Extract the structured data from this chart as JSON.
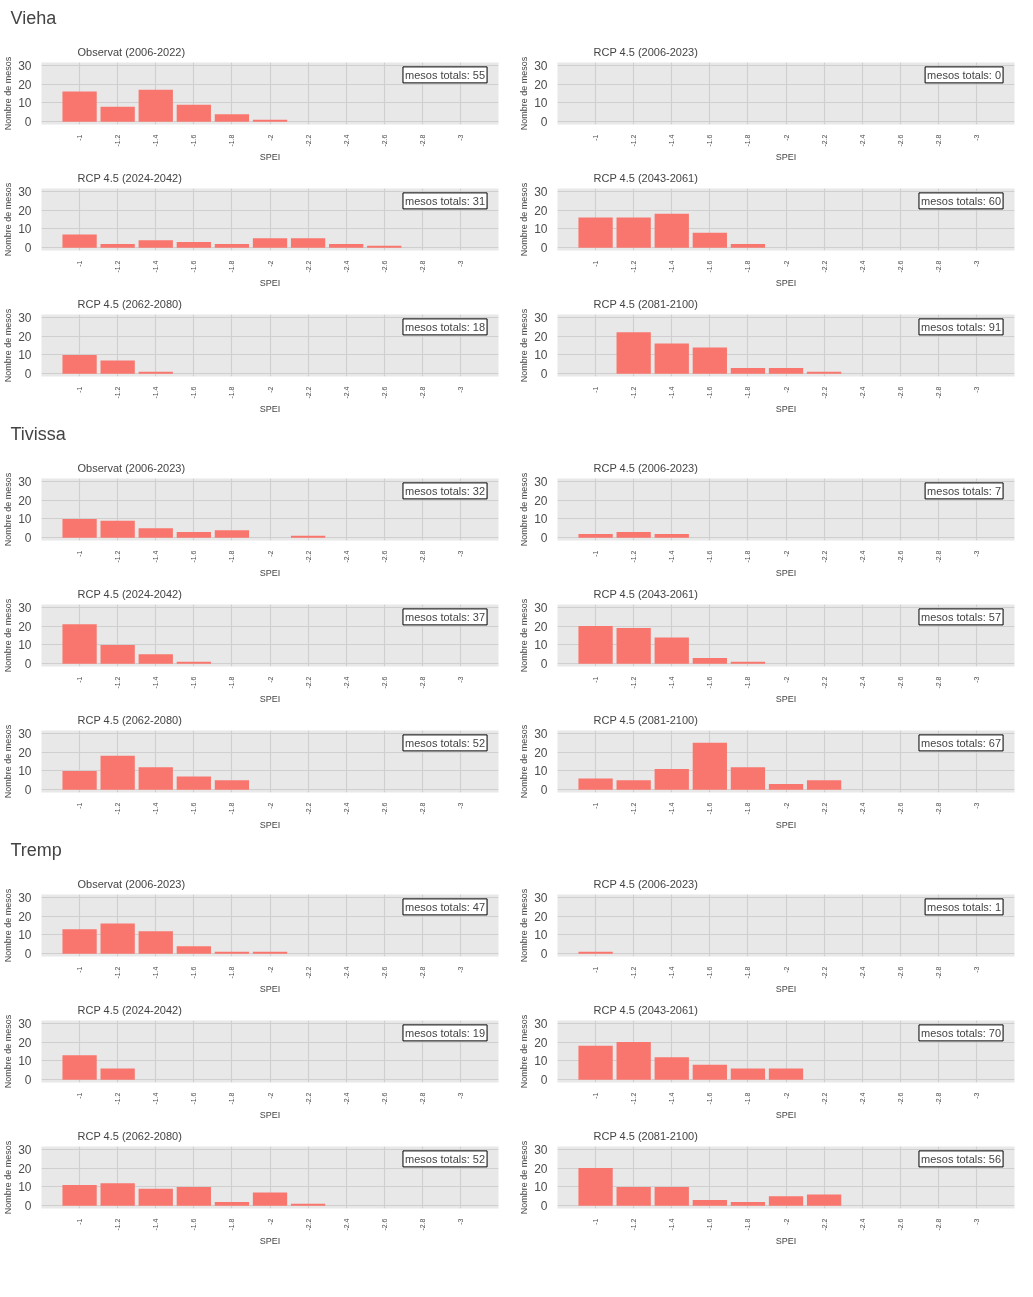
{
  "chart_data": [
    {
      "type": "other",
      "title": "Vieha"
    },
    {
      "type": "bar",
      "title": "Observat (2006-2022)",
      "xlabel": "SPEI",
      "ylabel": "Nombre de mesos",
      "x": [
        -1,
        -1.2,
        -1.4,
        -1.6,
        -1.8,
        -2,
        -2.2,
        -2.4,
        -2.6,
        -2.8,
        -3
      ],
      "values": [
        16,
        8,
        17,
        9,
        4,
        1,
        0,
        0,
        0,
        0,
        0
      ],
      "color": "#f8766d",
      "xlim": [
        -0.8,
        -3.2
      ],
      "xticks": [
        -1,
        -1.2,
        -1.4,
        -1.6,
        -1.8,
        -2,
        -2.2,
        -2.4,
        -2.6,
        -2.8,
        -3
      ],
      "ylim": [
        -1.5,
        31.5
      ],
      "yticks": [
        0,
        10,
        20,
        30
      ],
      "grid": true,
      "annotations": [
        "mesos totals: 55"
      ]
    },
    {
      "type": "bar",
      "title": "RCP 4.5 (2006-2023)",
      "xlabel": "SPEI",
      "ylabel": "Nombre de mesos",
      "x": [
        -1,
        -1.2,
        -1.4,
        -1.6,
        -1.8,
        -2,
        -2.2,
        -2.4,
        -2.6,
        -2.8,
        -3
      ],
      "values": [
        0,
        0,
        0,
        0,
        0,
        0,
        0,
        0,
        0,
        0,
        0
      ],
      "color": "#f8766d",
      "xlim": [
        -0.8,
        -3.2
      ],
      "xticks": [
        -1,
        -1.2,
        -1.4,
        -1.6,
        -1.8,
        -2,
        -2.2,
        -2.4,
        -2.6,
        -2.8,
        -3
      ],
      "ylim": [
        -1.5,
        31.5
      ],
      "yticks": [
        0,
        10,
        20,
        30
      ],
      "grid": true,
      "annotations": [
        "mesos totals: 0"
      ]
    },
    {
      "type": "bar",
      "title": "RCP 4.5 (2024-2042)",
      "xlabel": "SPEI",
      "ylabel": "Nombre de mesos",
      "x": [
        -1,
        -1.2,
        -1.4,
        -1.6,
        -1.8,
        -2,
        -2.2,
        -2.4,
        -2.6,
        -2.8,
        -3
      ],
      "values": [
        7,
        2,
        4,
        3,
        2,
        5,
        5,
        2,
        1,
        0,
        0
      ],
      "color": "#f8766d",
      "xlim": [
        -0.8,
        -3.2
      ],
      "xticks": [
        -1,
        -1.2,
        -1.4,
        -1.6,
        -1.8,
        -2,
        -2.2,
        -2.4,
        -2.6,
        -2.8,
        -3
      ],
      "ylim": [
        -1.5,
        31.5
      ],
      "yticks": [
        0,
        10,
        20,
        30
      ],
      "grid": true,
      "annotations": [
        "mesos totals: 31"
      ]
    },
    {
      "type": "bar",
      "title": "RCP 4.5 (2043-2061)",
      "xlabel": "SPEI",
      "ylabel": "Nombre de mesos",
      "x": [
        -1,
        -1.2,
        -1.4,
        -1.6,
        -1.8,
        -2,
        -2.2,
        -2.4,
        -2.6,
        -2.8,
        -3
      ],
      "values": [
        16,
        16,
        18,
        8,
        2,
        0,
        0,
        0,
        0,
        0,
        0
      ],
      "color": "#f8766d",
      "xlim": [
        -0.8,
        -3.2
      ],
      "xticks": [
        -1,
        -1.2,
        -1.4,
        -1.6,
        -1.8,
        -2,
        -2.2,
        -2.4,
        -2.6,
        -2.8,
        -3
      ],
      "ylim": [
        -1.5,
        31.5
      ],
      "yticks": [
        0,
        10,
        20,
        30
      ],
      "grid": true,
      "annotations": [
        "mesos totals: 60"
      ]
    },
    {
      "type": "bar",
      "title": "RCP 4.5 (2062-2080)",
      "xlabel": "SPEI",
      "ylabel": "Nombre de mesos",
      "x": [
        -1,
        -1.2,
        -1.4,
        -1.6,
        -1.8,
        -2,
        -2.2,
        -2.4,
        -2.6,
        -2.8,
        -3
      ],
      "values": [
        10,
        7,
        1,
        0,
        0,
        0,
        0,
        0,
        0,
        0,
        0
      ],
      "color": "#f8766d",
      "xlim": [
        -0.8,
        -3.2
      ],
      "xticks": [
        -1,
        -1.2,
        -1.4,
        -1.6,
        -1.8,
        -2,
        -2.2,
        -2.4,
        -2.6,
        -2.8,
        -3
      ],
      "ylim": [
        -1.5,
        31.5
      ],
      "yticks": [
        0,
        10,
        20,
        30
      ],
      "grid": true,
      "annotations": [
        "mesos totals: 18"
      ]
    },
    {
      "type": "bar",
      "title": "RCP 4.5 (2081-2100)",
      "xlabel": "SPEI",
      "ylabel": "Nombre de mesos",
      "x": [
        -1,
        -1.2,
        -1.4,
        -1.6,
        -1.8,
        -2,
        -2.2,
        -2.4,
        -2.6,
        -2.8,
        -3
      ],
      "values": [
        0,
        22,
        16,
        14,
        3,
        3,
        1,
        0,
        0,
        0,
        0
      ],
      "color": "#f8766d",
      "xlim": [
        -0.8,
        -3.2
      ],
      "xticks": [
        -1,
        -1.2,
        -1.4,
        -1.6,
        -1.8,
        -2,
        -2.2,
        -2.4,
        -2.6,
        -2.8,
        -3
      ],
      "ylim": [
        -1.5,
        31.5
      ],
      "yticks": [
        0,
        10,
        20,
        30
      ],
      "grid": true,
      "annotations": [
        "mesos totals: 91"
      ]
    },
    {
      "type": "other",
      "title": "Tivissa"
    },
    {
      "type": "bar",
      "title": "Observat (2006-2023)",
      "xlabel": "SPEI",
      "ylabel": "Nombre de mesos",
      "x": [
        -1,
        -1.2,
        -1.4,
        -1.6,
        -1.8,
        -2,
        -2.2,
        -2.4,
        -2.6,
        -2.8,
        -3
      ],
      "values": [
        10,
        9,
        5,
        3,
        4,
        0,
        1,
        0,
        0,
        0,
        0
      ],
      "color": "#f8766d",
      "xlim": [
        -0.8,
        -3.2
      ],
      "xticks": [
        -1,
        -1.2,
        -1.4,
        -1.6,
        -1.8,
        -2,
        -2.2,
        -2.4,
        -2.6,
        -2.8,
        -3
      ],
      "ylim": [
        -1.5,
        31.5
      ],
      "yticks": [
        0,
        10,
        20,
        30
      ],
      "grid": true,
      "annotations": [
        "mesos totals: 32"
      ]
    },
    {
      "type": "bar",
      "title": "RCP 4.5 (2006-2023)",
      "xlabel": "SPEI",
      "ylabel": "Nombre de mesos",
      "x": [
        -1,
        -1.2,
        -1.4,
        -1.6,
        -1.8,
        -2,
        -2.2,
        -2.4,
        -2.6,
        -2.8,
        -3
      ],
      "values": [
        2,
        3,
        2,
        0,
        0,
        0,
        0,
        0,
        0,
        0,
        0
      ],
      "color": "#f8766d",
      "xlim": [
        -0.8,
        -3.2
      ],
      "xticks": [
        -1,
        -1.2,
        -1.4,
        -1.6,
        -1.8,
        -2,
        -2.2,
        -2.4,
        -2.6,
        -2.8,
        -3
      ],
      "ylim": [
        -1.5,
        31.5
      ],
      "yticks": [
        0,
        10,
        20,
        30
      ],
      "grid": true,
      "annotations": [
        "mesos totals: 7"
      ]
    },
    {
      "type": "bar",
      "title": "RCP 4.5 (2024-2042)",
      "xlabel": "SPEI",
      "ylabel": "Nombre de mesos",
      "x": [
        -1,
        -1.2,
        -1.4,
        -1.6,
        -1.8,
        -2,
        -2.2,
        -2.4,
        -2.6,
        -2.8,
        -3
      ],
      "values": [
        21,
        10,
        5,
        1,
        0,
        0,
        0,
        0,
        0,
        0,
        0
      ],
      "color": "#f8766d",
      "xlim": [
        -0.8,
        -3.2
      ],
      "xticks": [
        -1,
        -1.2,
        -1.4,
        -1.6,
        -1.8,
        -2,
        -2.2,
        -2.4,
        -2.6,
        -2.8,
        -3
      ],
      "ylim": [
        -1.5,
        31.5
      ],
      "yticks": [
        0,
        10,
        20,
        30
      ],
      "grid": true,
      "annotations": [
        "mesos totals: 37"
      ]
    },
    {
      "type": "bar",
      "title": "RCP 4.5 (2043-2061)",
      "xlabel": "SPEI",
      "ylabel": "Nombre de mesos",
      "x": [
        -1,
        -1.2,
        -1.4,
        -1.6,
        -1.8,
        -2,
        -2.2,
        -2.4,
        -2.6,
        -2.8,
        -3
      ],
      "values": [
        20,
        19,
        14,
        3,
        1,
        0,
        0,
        0,
        0,
        0,
        0
      ],
      "color": "#f8766d",
      "xlim": [
        -0.8,
        -3.2
      ],
      "xticks": [
        -1,
        -1.2,
        -1.4,
        -1.6,
        -1.8,
        -2,
        -2.2,
        -2.4,
        -2.6,
        -2.8,
        -3
      ],
      "ylim": [
        -1.5,
        31.5
      ],
      "yticks": [
        0,
        10,
        20,
        30
      ],
      "grid": true,
      "annotations": [
        "mesos totals: 57"
      ]
    },
    {
      "type": "bar",
      "title": "RCP 4.5 (2062-2080)",
      "xlabel": "SPEI",
      "ylabel": "Nombre de mesos",
      "x": [
        -1,
        -1.2,
        -1.4,
        -1.6,
        -1.8,
        -2,
        -2.2,
        -2.4,
        -2.6,
        -2.8,
        -3
      ],
      "values": [
        10,
        18,
        12,
        7,
        5,
        0,
        0,
        0,
        0,
        0,
        0
      ],
      "color": "#f8766d",
      "xlim": [
        -0.8,
        -3.2
      ],
      "xticks": [
        -1,
        -1.2,
        -1.4,
        -1.6,
        -1.8,
        -2,
        -2.2,
        -2.4,
        -2.6,
        -2.8,
        -3
      ],
      "ylim": [
        -1.5,
        31.5
      ],
      "yticks": [
        0,
        10,
        20,
        30
      ],
      "grid": true,
      "annotations": [
        "mesos totals: 52"
      ]
    },
    {
      "type": "bar",
      "title": "RCP 4.5 (2081-2100)",
      "xlabel": "SPEI",
      "ylabel": "Nombre de mesos",
      "x": [
        -1,
        -1.2,
        -1.4,
        -1.6,
        -1.8,
        -2,
        -2.2,
        -2.4,
        -2.6,
        -2.8,
        -3
      ],
      "values": [
        6,
        5,
        11,
        25,
        12,
        3,
        5,
        0,
        0,
        0,
        0
      ],
      "color": "#f8766d",
      "xlim": [
        -0.8,
        -3.2
      ],
      "xticks": [
        -1,
        -1.2,
        -1.4,
        -1.6,
        -1.8,
        -2,
        -2.2,
        -2.4,
        -2.6,
        -2.8,
        -3
      ],
      "ylim": [
        -1.5,
        31.5
      ],
      "yticks": [
        0,
        10,
        20,
        30
      ],
      "grid": true,
      "annotations": [
        "mesos totals: 67"
      ]
    },
    {
      "type": "other",
      "title": "Tremp"
    },
    {
      "type": "bar",
      "title": "Observat (2006-2023)",
      "xlabel": "SPEI",
      "ylabel": "Nombre de mesos",
      "x": [
        -1,
        -1.2,
        -1.4,
        -1.6,
        -1.8,
        -2,
        -2.2,
        -2.4,
        -2.6,
        -2.8,
        -3
      ],
      "values": [
        13,
        16,
        12,
        4,
        1,
        1,
        0,
        0,
        0,
        0,
        0
      ],
      "color": "#f8766d",
      "xlim": [
        -0.8,
        -3.2
      ],
      "xticks": [
        -1,
        -1.2,
        -1.4,
        -1.6,
        -1.8,
        -2,
        -2.2,
        -2.4,
        -2.6,
        -2.8,
        -3
      ],
      "ylim": [
        -1.5,
        31.5
      ],
      "yticks": [
        0,
        10,
        20,
        30
      ],
      "grid": true,
      "annotations": [
        "mesos totals: 47"
      ]
    },
    {
      "type": "bar",
      "title": "RCP 4.5 (2006-2023)",
      "xlabel": "SPEI",
      "ylabel": "Nombre de mesos",
      "x": [
        -1,
        -1.2,
        -1.4,
        -1.6,
        -1.8,
        -2,
        -2.2,
        -2.4,
        -2.6,
        -2.8,
        -3
      ],
      "values": [
        1,
        0,
        0,
        0,
        0,
        0,
        0,
        0,
        0,
        0,
        0
      ],
      "color": "#f8766d",
      "xlim": [
        -0.8,
        -3.2
      ],
      "xticks": [
        -1,
        -1.2,
        -1.4,
        -1.6,
        -1.8,
        -2,
        -2.2,
        -2.4,
        -2.6,
        -2.8,
        -3
      ],
      "ylim": [
        -1.5,
        31.5
      ],
      "yticks": [
        0,
        10,
        20,
        30
      ],
      "grid": true,
      "annotations": [
        "mesos totals: 1"
      ]
    },
    {
      "type": "bar",
      "title": "RCP 4.5 (2024-2042)",
      "xlabel": "SPEI",
      "ylabel": "Nombre de mesos",
      "x": [
        -1,
        -1.2,
        -1.4,
        -1.6,
        -1.8,
        -2,
        -2.2,
        -2.4,
        -2.6,
        -2.8,
        -3
      ],
      "values": [
        13,
        6,
        0,
        0,
        0,
        0,
        0,
        0,
        0,
        0,
        0
      ],
      "color": "#f8766d",
      "xlim": [
        -0.8,
        -3.2
      ],
      "xticks": [
        -1,
        -1.2,
        -1.4,
        -1.6,
        -1.8,
        -2,
        -2.2,
        -2.4,
        -2.6,
        -2.8,
        -3
      ],
      "ylim": [
        -1.5,
        31.5
      ],
      "yticks": [
        0,
        10,
        20,
        30
      ],
      "grid": true,
      "annotations": [
        "mesos totals: 19"
      ]
    },
    {
      "type": "bar",
      "title": "RCP 4.5 (2043-2061)",
      "xlabel": "SPEI",
      "ylabel": "Nombre de mesos",
      "x": [
        -1,
        -1.2,
        -1.4,
        -1.6,
        -1.8,
        -2,
        -2.2,
        -2.4,
        -2.6,
        -2.8,
        -3
      ],
      "values": [
        18,
        20,
        12,
        8,
        6,
        6,
        0,
        0,
        0,
        0,
        0
      ],
      "color": "#f8766d",
      "xlim": [
        -0.8,
        -3.2
      ],
      "xticks": [
        -1,
        -1.2,
        -1.4,
        -1.6,
        -1.8,
        -2,
        -2.2,
        -2.4,
        -2.6,
        -2.8,
        -3
      ],
      "ylim": [
        -1.5,
        31.5
      ],
      "yticks": [
        0,
        10,
        20,
        30
      ],
      "grid": true,
      "annotations": [
        "mesos totals: 70"
      ]
    },
    {
      "type": "bar",
      "title": "RCP 4.5 (2062-2080)",
      "xlabel": "SPEI",
      "ylabel": "Nombre de mesos",
      "x": [
        -1,
        -1.2,
        -1.4,
        -1.6,
        -1.8,
        -2,
        -2.2,
        -2.4,
        -2.6,
        -2.8,
        -3
      ],
      "values": [
        11,
        12,
        9,
        10,
        2,
        7,
        1,
        0,
        0,
        0,
        0
      ],
      "color": "#f8766d",
      "xlim": [
        -0.8,
        -3.2
      ],
      "xticks": [
        -1,
        -1.2,
        -1.4,
        -1.6,
        -1.8,
        -2,
        -2.2,
        -2.4,
        -2.6,
        -2.8,
        -3
      ],
      "ylim": [
        -1.5,
        31.5
      ],
      "yticks": [
        0,
        10,
        20,
        30
      ],
      "grid": true,
      "annotations": [
        "mesos totals: 52"
      ]
    },
    {
      "type": "bar",
      "title": "RCP 4.5 (2081-2100)",
      "xlabel": "SPEI",
      "ylabel": "Nombre de mesos",
      "x": [
        -1,
        -1.2,
        -1.4,
        -1.6,
        -1.8,
        -2,
        -2.2,
        -2.4,
        -2.6,
        -2.8,
        -3
      ],
      "values": [
        20,
        10,
        10,
        3,
        2,
        5,
        6,
        0,
        0,
        0,
        0
      ],
      "color": "#f8766d",
      "xlim": [
        -0.8,
        -3.2
      ],
      "xticks": [
        -1,
        -1.2,
        -1.4,
        -1.6,
        -1.8,
        -2,
        -2.2,
        -2.4,
        -2.6,
        -2.8,
        -3
      ],
      "ylim": [
        -1.5,
        31.5
      ],
      "yticks": [
        0,
        10,
        20,
        30
      ],
      "grid": true,
      "annotations": [
        "mesos totals: 56"
      ]
    }
  ]
}
